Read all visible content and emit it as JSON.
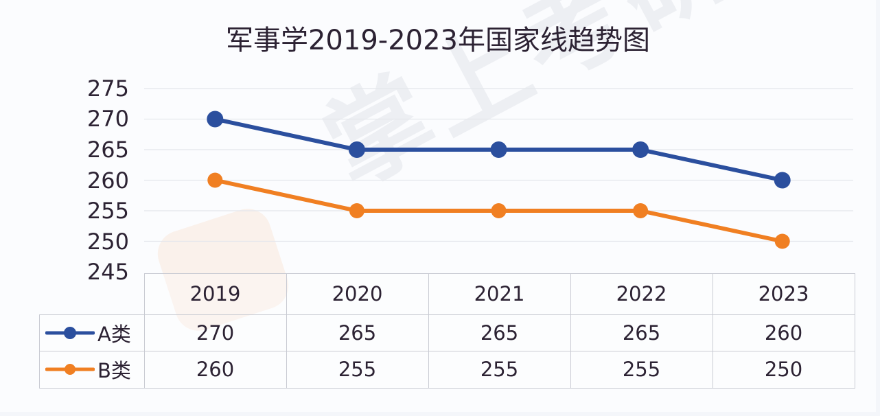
{
  "title": "军事学2019-2023年国家线趋势图",
  "watermark": {
    "text": "掌上考研",
    "icon": "logo-watermark-icon"
  },
  "colors": {
    "series_a": "#2b4f9e",
    "series_b": "#f07f22",
    "gridline": "#e4e6ec",
    "border": "#c9cbd3",
    "text": "#2c2233"
  },
  "y_axis": {
    "ticks": [
      "275",
      "270",
      "265",
      "260",
      "255",
      "250",
      "245"
    ]
  },
  "table": {
    "header": [
      "2019",
      "2020",
      "2021",
      "2022",
      "2023"
    ],
    "rows": [
      {
        "label": "A类",
        "values": [
          "270",
          "265",
          "265",
          "265",
          "260"
        ]
      },
      {
        "label": "B类",
        "values": [
          "260",
          "255",
          "255",
          "255",
          "250"
        ]
      }
    ]
  },
  "chart_data": {
    "type": "line",
    "title": "军事学2019-2023年国家线趋势图",
    "categories": [
      "2019",
      "2020",
      "2021",
      "2022",
      "2023"
    ],
    "series": [
      {
        "name": "A类",
        "color": "#2b4f9e",
        "values": [
          270,
          265,
          265,
          265,
          260
        ]
      },
      {
        "name": "B类",
        "color": "#f07f22",
        "values": [
          260,
          255,
          255,
          255,
          250
        ]
      }
    ],
    "xlabel": "",
    "ylabel": "",
    "ylim": [
      245,
      275
    ],
    "yticks": [
      245,
      250,
      255,
      260,
      265,
      270,
      275
    ],
    "grid": true,
    "legend_position": "data-table-left",
    "data_table": true
  }
}
